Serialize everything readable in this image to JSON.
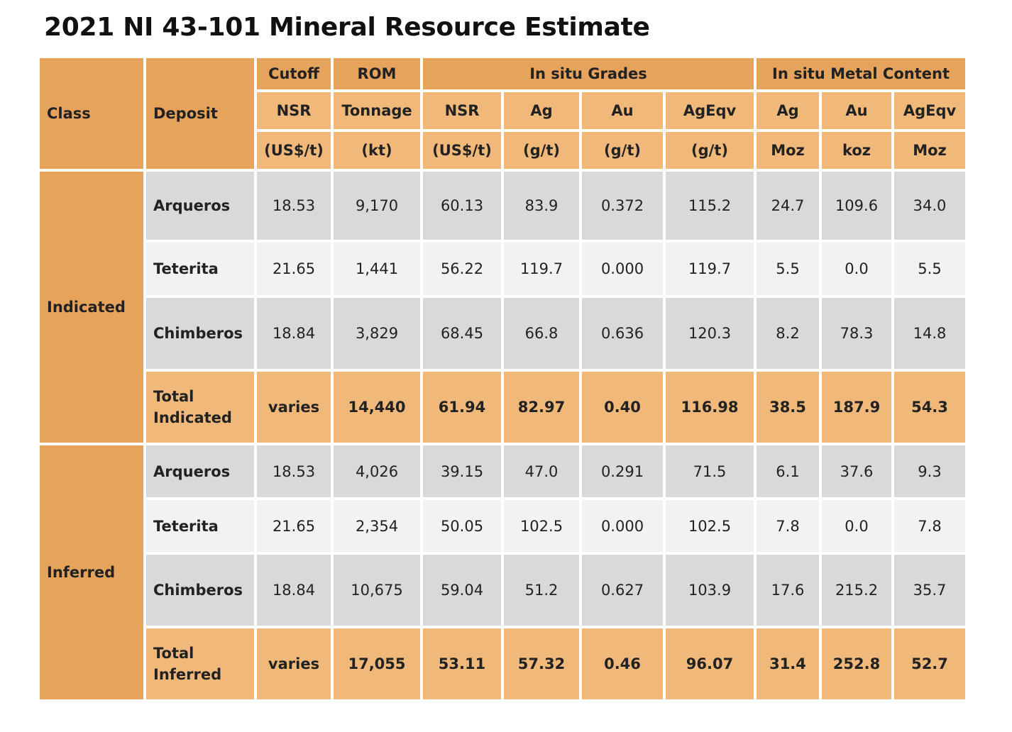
{
  "title": "2021 NI 43-101 Mineral Resource Estimate",
  "header": {
    "class": "Class",
    "deposit": "Deposit",
    "group_cutoff": "Cutoff",
    "group_rom": "ROM",
    "group_grades": "In situ Grades",
    "group_metal": "In situ Metal Content",
    "cols": [
      "NSR",
      "Tonnage",
      "NSR",
      "Ag",
      "Au",
      "AgEqv",
      "Ag",
      "Au",
      "AgEqv"
    ],
    "units": [
      "(US$/t)",
      "(kt)",
      "(US$/t)",
      "(g/t)",
      "(g/t)",
      "(g/t)",
      "Moz",
      "koz",
      "Moz"
    ]
  },
  "indicated": {
    "label": "Indicated",
    "rows": [
      {
        "deposit": "Arqueros",
        "values": [
          "18.53",
          "9,170",
          "60.13",
          "83.9",
          "0.372",
          "115.2",
          "24.7",
          "109.6",
          "34.0"
        ]
      },
      {
        "deposit": "Teterita",
        "values": [
          "21.65",
          "1,441",
          "56.22",
          "119.7",
          "0.000",
          "119.7",
          "5.5",
          "0.0",
          "5.5"
        ]
      },
      {
        "deposit": "Chimberos",
        "values": [
          "18.84",
          "3,829",
          "68.45",
          "66.8",
          "0.636",
          "120.3",
          "8.2",
          "78.3",
          "14.8"
        ]
      }
    ],
    "total": {
      "deposit": "Total Indicated",
      "values": [
        "varies",
        "14,440",
        "61.94",
        "82.97",
        "0.40",
        "116.98",
        "38.5",
        "187.9",
        "54.3"
      ]
    }
  },
  "inferred": {
    "label": "Inferred",
    "rows": [
      {
        "deposit": "Arqueros",
        "values": [
          "18.53",
          "4,026",
          "39.15",
          "47.0",
          "0.291",
          "71.5",
          "6.1",
          "37.6",
          "9.3"
        ]
      },
      {
        "deposit": "Teterita",
        "values": [
          "21.65",
          "2,354",
          "50.05",
          "102.5",
          "0.000",
          "102.5",
          "7.8",
          "0.0",
          "7.8"
        ]
      },
      {
        "deposit": "Chimberos",
        "values": [
          "18.84",
          "10,675",
          "59.04",
          "51.2",
          "0.627",
          "103.9",
          "17.6",
          "215.2",
          "35.7"
        ]
      }
    ],
    "total": {
      "deposit": "Total Inferred",
      "values": [
        "varies",
        "17,055",
        "53.11",
        "57.32",
        "0.46",
        "96.07",
        "31.4",
        "252.8",
        "52.7"
      ]
    }
  },
  "colors": {
    "header_dark": "#E6A35C",
    "header_light": "#F0B97A",
    "row_gray": "#D9D9D9",
    "row_light": "#F2F2F2"
  }
}
